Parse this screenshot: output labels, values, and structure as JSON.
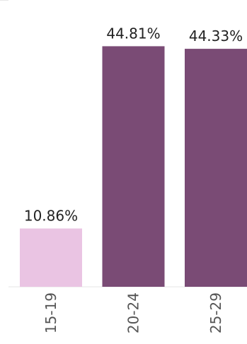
{
  "chart_data": {
    "type": "bar",
    "title": "",
    "xlabel": "",
    "ylabel": "",
    "categories": [
      "15-19",
      "20-24",
      "25-29"
    ],
    "values": [
      10.86,
      44.81,
      44.33
    ],
    "data_labels": [
      "10.86%",
      "44.81%",
      "44.33%"
    ],
    "ylim": [
      0,
      50
    ],
    "grid": false,
    "colors": [
      "#eac4e3",
      "#7a4b75",
      "#7a4b75"
    ]
  }
}
